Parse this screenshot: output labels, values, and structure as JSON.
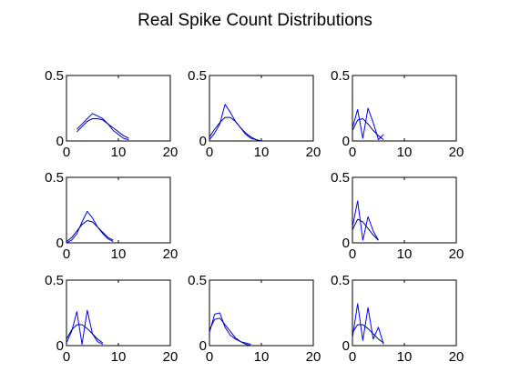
{
  "title": "Real Spike Count Distributions",
  "colors": {
    "empirical": "#0000ff",
    "fit": "#000080",
    "axes": "#000000"
  },
  "chart_data": [
    {
      "type": "line",
      "panel": "row1-col1",
      "xlim": [
        0,
        20
      ],
      "ylim": [
        0,
        0.5
      ],
      "xticks": [
        0,
        10,
        20
      ],
      "yticks": [
        0,
        0.5
      ],
      "grid": false,
      "series": [
        {
          "x": [
            2,
            3,
            4,
            5,
            6,
            7,
            8,
            9,
            10,
            11,
            12
          ],
          "values": [
            0.09,
            0.13,
            0.17,
            0.21,
            0.19,
            0.17,
            0.13,
            0.08,
            0.05,
            0.02,
            0.01
          ]
        },
        {
          "x": [
            2,
            3,
            4,
            5,
            6,
            7,
            8,
            9,
            10,
            11,
            12
          ],
          "values": [
            0.07,
            0.11,
            0.15,
            0.17,
            0.17,
            0.16,
            0.13,
            0.1,
            0.07,
            0.04,
            0.02
          ]
        }
      ]
    },
    {
      "type": "line",
      "panel": "row1-col2",
      "xlim": [
        0,
        20
      ],
      "ylim": [
        0,
        0.5
      ],
      "xticks": [
        0,
        10,
        20
      ],
      "yticks": [
        0,
        0.5
      ],
      "grid": false,
      "series": [
        {
          "x": [
            0,
            1,
            2,
            3,
            4,
            5,
            6,
            7,
            8,
            9,
            10
          ],
          "values": [
            0.01,
            0.06,
            0.13,
            0.28,
            0.22,
            0.15,
            0.1,
            0.05,
            0.02,
            0.01,
            0.0
          ]
        },
        {
          "x": [
            0,
            1,
            2,
            3,
            4,
            5,
            6,
            7,
            8,
            9,
            10
          ],
          "values": [
            0.03,
            0.09,
            0.14,
            0.18,
            0.18,
            0.15,
            0.1,
            0.06,
            0.03,
            0.01,
            0.0
          ]
        }
      ]
    },
    {
      "type": "line",
      "panel": "row1-col3",
      "xlim": [
        0,
        20
      ],
      "ylim": [
        0,
        0.5
      ],
      "xticks": [
        0,
        10,
        20
      ],
      "yticks": [
        0,
        0.5
      ],
      "grid": false,
      "series": [
        {
          "x": [
            0,
            1,
            2,
            3,
            4,
            5,
            6
          ],
          "values": [
            0.1,
            0.24,
            0.02,
            0.25,
            0.14,
            0.01,
            0.05
          ]
        },
        {
          "x": [
            0,
            1,
            2,
            3,
            4,
            5,
            6
          ],
          "values": [
            0.08,
            0.16,
            0.17,
            0.13,
            0.08,
            0.04,
            0.01
          ]
        }
      ]
    },
    {
      "type": "line",
      "panel": "row2-col1",
      "xlim": [
        0,
        20
      ],
      "ylim": [
        0,
        0.5
      ],
      "xticks": [
        0,
        10,
        20
      ],
      "yticks": [
        0,
        0.5
      ],
      "grid": false,
      "series": [
        {
          "x": [
            0,
            1,
            2,
            3,
            4,
            5,
            6,
            7,
            8,
            9
          ],
          "values": [
            0.0,
            0.02,
            0.07,
            0.16,
            0.24,
            0.19,
            0.12,
            0.07,
            0.03,
            0.01
          ]
        },
        {
          "x": [
            0,
            1,
            2,
            3,
            4,
            5,
            6,
            7,
            8,
            9
          ],
          "values": [
            0.01,
            0.04,
            0.09,
            0.14,
            0.17,
            0.16,
            0.12,
            0.08,
            0.04,
            0.02
          ]
        }
      ]
    },
    {
      "type": "line",
      "panel": "row2-col3",
      "xlim": [
        0,
        20
      ],
      "ylim": [
        0,
        0.5
      ],
      "xticks": [
        0,
        10,
        20
      ],
      "yticks": [
        0,
        0.5
      ],
      "grid": false,
      "series": [
        {
          "x": [
            0,
            1,
            2,
            3,
            4,
            5
          ],
          "values": [
            0.12,
            0.32,
            0.02,
            0.2,
            0.09,
            0.02
          ]
        },
        {
          "x": [
            0,
            1,
            2,
            3,
            4,
            5
          ],
          "values": [
            0.1,
            0.18,
            0.16,
            0.11,
            0.06,
            0.02
          ]
        }
      ]
    },
    {
      "type": "line",
      "panel": "row3-col1",
      "xlim": [
        0,
        20
      ],
      "ylim": [
        0,
        0.5
      ],
      "xticks": [
        0,
        10,
        20
      ],
      "yticks": [
        0,
        0.5
      ],
      "grid": false,
      "series": [
        {
          "x": [
            0,
            1,
            2,
            3,
            4,
            5,
            6,
            7
          ],
          "values": [
            0.02,
            0.11,
            0.26,
            0.01,
            0.27,
            0.09,
            0.03,
            0.01
          ]
        },
        {
          "x": [
            0,
            1,
            2,
            3,
            4,
            5,
            6,
            7
          ],
          "values": [
            0.05,
            0.12,
            0.16,
            0.16,
            0.13,
            0.09,
            0.05,
            0.02
          ]
        }
      ]
    },
    {
      "type": "line",
      "panel": "row3-col2",
      "xlim": [
        0,
        20
      ],
      "ylim": [
        0,
        0.5
      ],
      "xticks": [
        0,
        10,
        20
      ],
      "yticks": [
        0,
        0.5
      ],
      "grid": false,
      "series": [
        {
          "x": [
            0,
            1,
            2,
            3,
            4,
            5,
            6,
            7,
            8
          ],
          "values": [
            0.1,
            0.24,
            0.25,
            0.14,
            0.08,
            0.05,
            0.03,
            0.02,
            0.01
          ]
        },
        {
          "x": [
            0,
            1,
            2,
            3,
            4,
            5,
            6,
            7,
            8
          ],
          "values": [
            0.12,
            0.2,
            0.21,
            0.16,
            0.11,
            0.06,
            0.03,
            0.01,
            0.0
          ]
        }
      ]
    },
    {
      "type": "line",
      "panel": "row3-col3",
      "xlim": [
        0,
        20
      ],
      "ylim": [
        0,
        0.5
      ],
      "xticks": [
        0,
        10,
        20
      ],
      "yticks": [
        0,
        0.5
      ],
      "grid": false,
      "series": [
        {
          "x": [
            0,
            1,
            2,
            3,
            4,
            5,
            6
          ],
          "values": [
            0.06,
            0.32,
            0.04,
            0.29,
            0.05,
            0.14,
            0.01
          ]
        },
        {
          "x": [
            0,
            1,
            2,
            3,
            4,
            5,
            6
          ],
          "values": [
            0.1,
            0.16,
            0.16,
            0.13,
            0.09,
            0.05,
            0.02
          ]
        }
      ]
    }
  ]
}
